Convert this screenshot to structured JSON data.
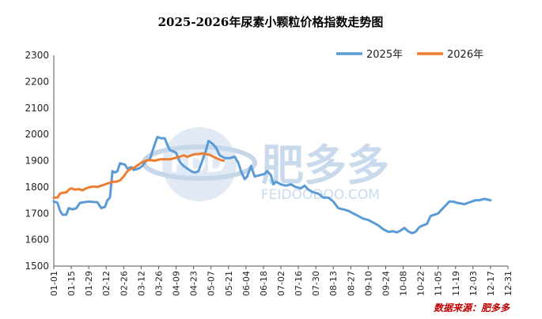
{
  "chart_data": {
    "type": "line",
    "title": "2025-2026年尿素小颗粒价格指数走势图",
    "xlabel": "",
    "ylabel": "",
    "ylim": [
      1500,
      2300
    ],
    "yticks": [
      1500,
      1600,
      1700,
      1800,
      1900,
      2000,
      2100,
      2200,
      2300
    ],
    "x_tick_labels": [
      "01-01",
      "01-15",
      "01-29",
      "02-12",
      "02-26",
      "03-12",
      "03-26",
      "04-09",
      "04-23",
      "05-07",
      "05-21",
      "06-04",
      "06-18",
      "07-02",
      "07-16",
      "07-30",
      "08-13",
      "08-27",
      "09-10",
      "09-24",
      "10-08",
      "10-22",
      "11-05",
      "11-19",
      "12-03",
      "12-17",
      "12-31"
    ],
    "legend_position": "top-right",
    "grid": false,
    "series": [
      {
        "name": "2025年",
        "color": "#5b9bd5",
        "points": [
          [
            0,
            1745
          ],
          [
            3,
            1740
          ],
          [
            5,
            1710
          ],
          [
            7,
            1695
          ],
          [
            10,
            1695
          ],
          [
            12,
            1720
          ],
          [
            15,
            1715
          ],
          [
            18,
            1720
          ],
          [
            21,
            1740
          ],
          [
            28,
            1745
          ],
          [
            35,
            1742
          ],
          [
            38,
            1720
          ],
          [
            41,
            1725
          ],
          [
            43,
            1750
          ],
          [
            45,
            1760
          ],
          [
            47,
            1860
          ],
          [
            49,
            1855
          ],
          [
            51,
            1860
          ],
          [
            53,
            1890
          ],
          [
            57,
            1885
          ],
          [
            59,
            1870
          ],
          [
            62,
            1875
          ],
          [
            64,
            1865
          ],
          [
            68,
            1870
          ],
          [
            71,
            1880
          ],
          [
            74,
            1900
          ],
          [
            77,
            1905
          ],
          [
            80,
            1950
          ],
          [
            83,
            1990
          ],
          [
            86,
            1985
          ],
          [
            89,
            1985
          ],
          [
            91,
            1960
          ],
          [
            93,
            1940
          ],
          [
            96,
            1935
          ],
          [
            98,
            1930
          ],
          [
            101,
            1895
          ],
          [
            104,
            1880
          ],
          [
            107,
            1870
          ],
          [
            110,
            1860
          ],
          [
            113,
            1855
          ],
          [
            116,
            1860
          ],
          [
            119,
            1900
          ],
          [
            122,
            1940
          ],
          [
            124,
            1975
          ],
          [
            127,
            1965
          ],
          [
            130,
            1950
          ],
          [
            133,
            1920
          ],
          [
            137,
            1910
          ],
          [
            141,
            1910
          ],
          [
            145,
            1915
          ],
          [
            148,
            1890
          ],
          [
            150,
            1860
          ],
          [
            153,
            1830
          ],
          [
            155,
            1840
          ],
          [
            158,
            1880
          ],
          [
            161,
            1840
          ],
          [
            165,
            1845
          ],
          [
            169,
            1850
          ],
          [
            171,
            1860
          ],
          [
            174,
            1845
          ],
          [
            176,
            1810
          ],
          [
            178,
            1820
          ],
          [
            182,
            1810
          ],
          [
            186,
            1805
          ],
          [
            190,
            1810
          ],
          [
            194,
            1800
          ],
          [
            198,
            1795
          ],
          [
            201,
            1805
          ],
          [
            204,
            1790
          ],
          [
            208,
            1780
          ],
          [
            212,
            1775
          ],
          [
            216,
            1760
          ],
          [
            220,
            1760
          ],
          [
            224,
            1745
          ],
          [
            228,
            1720
          ],
          [
            232,
            1715
          ],
          [
            236,
            1710
          ],
          [
            240,
            1700
          ],
          [
            244,
            1690
          ],
          [
            248,
            1680
          ],
          [
            252,
            1675
          ],
          [
            256,
            1665
          ],
          [
            260,
            1655
          ],
          [
            264,
            1640
          ],
          [
            268,
            1630
          ],
          [
            272,
            1632
          ],
          [
            275,
            1628
          ],
          [
            278,
            1635
          ],
          [
            281,
            1645
          ],
          [
            284,
            1632
          ],
          [
            287,
            1625
          ],
          [
            290,
            1630
          ],
          [
            293,
            1648
          ],
          [
            296,
            1655
          ],
          [
            299,
            1660
          ],
          [
            302,
            1690
          ],
          [
            305,
            1695
          ],
          [
            308,
            1700
          ],
          [
            311,
            1715
          ],
          [
            314,
            1730
          ],
          [
            317,
            1745
          ],
          [
            320,
            1745
          ],
          [
            323,
            1740
          ],
          [
            326,
            1738
          ],
          [
            329,
            1735
          ],
          [
            332,
            1740
          ],
          [
            335,
            1745
          ],
          [
            338,
            1750
          ],
          [
            341,
            1750
          ],
          [
            345,
            1755
          ],
          [
            348,
            1752
          ],
          [
            350,
            1750
          ]
        ]
      },
      {
        "name": "2026年",
        "color": "#ed7d31",
        "points": [
          [
            0,
            1760
          ],
          [
            3,
            1760
          ],
          [
            5,
            1775
          ],
          [
            7,
            1778
          ],
          [
            10,
            1780
          ],
          [
            12,
            1790
          ],
          [
            14,
            1795
          ],
          [
            17,
            1790
          ],
          [
            20,
            1792
          ],
          [
            23,
            1788
          ],
          [
            26,
            1795
          ],
          [
            29,
            1800
          ],
          [
            32,
            1802
          ],
          [
            35,
            1800
          ],
          [
            38,
            1805
          ],
          [
            41,
            1810
          ],
          [
            44,
            1815
          ],
          [
            47,
            1820
          ],
          [
            50,
            1820
          ],
          [
            53,
            1825
          ],
          [
            56,
            1840
          ],
          [
            59,
            1860
          ],
          [
            62,
            1870
          ],
          [
            65,
            1875
          ],
          [
            68,
            1885
          ],
          [
            71,
            1895
          ],
          [
            74,
            1900
          ],
          [
            77,
            1902
          ],
          [
            81,
            1900
          ],
          [
            85,
            1905
          ],
          [
            89,
            1905
          ],
          [
            93,
            1905
          ],
          [
            97,
            1910
          ],
          [
            101,
            1915
          ],
          [
            104,
            1920
          ],
          [
            107,
            1915
          ],
          [
            110,
            1920
          ],
          [
            113,
            1925
          ],
          [
            116,
            1925
          ],
          [
            119,
            1928
          ],
          [
            122,
            1925
          ],
          [
            125,
            1922
          ],
          [
            128,
            1915
          ],
          [
            131,
            1908
          ],
          [
            134,
            1902
          ],
          [
            136,
            1900
          ]
        ]
      }
    ]
  },
  "watermark": {
    "logo_text": "FDD",
    "brand": "肥多多",
    "url": "FEIDOODOO.COM"
  },
  "source_note": "数据来源：肥多多"
}
